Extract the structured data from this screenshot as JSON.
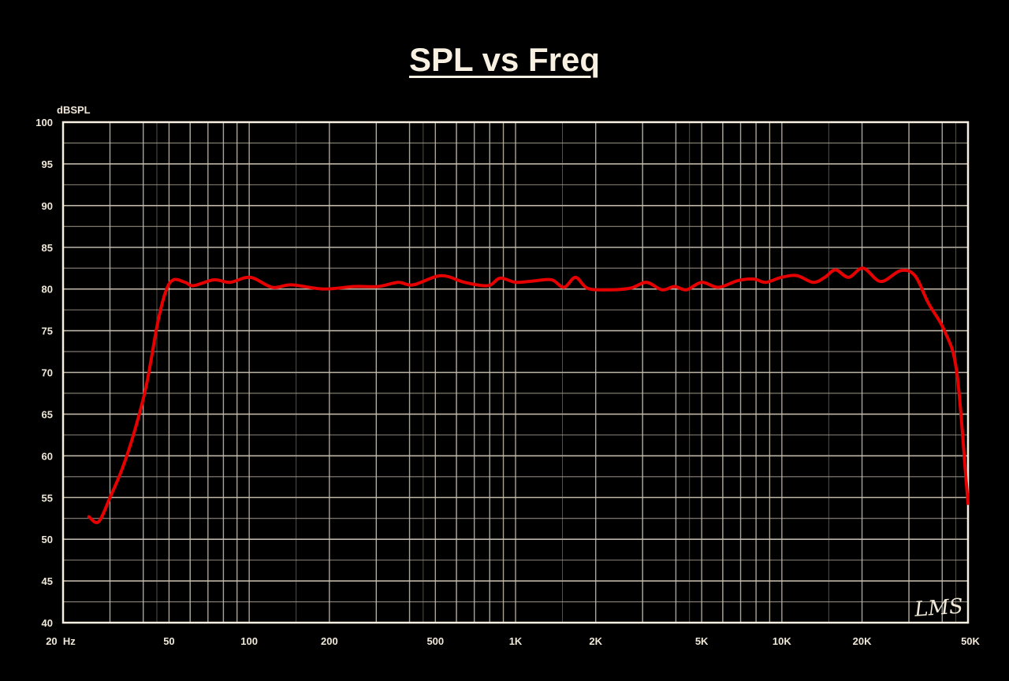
{
  "chart_data": {
    "type": "line",
    "title": "SPL vs Freq",
    "xlabel": "",
    "ylabel": "dBSPL",
    "xscale": "log",
    "xlim": [
      20,
      50000
    ],
    "ylim": [
      40,
      100
    ],
    "grid": true,
    "logo_text": "LMS",
    "x_ticks": [
      {
        "value": 20,
        "label": "20  Hz"
      },
      {
        "value": 50,
        "label": "50"
      },
      {
        "value": 100,
        "label": "100"
      },
      {
        "value": 200,
        "label": "200"
      },
      {
        "value": 500,
        "label": "500"
      },
      {
        "value": 1000,
        "label": "1K"
      },
      {
        "value": 2000,
        "label": "2K"
      },
      {
        "value": 5000,
        "label": "5K"
      },
      {
        "value": 10000,
        "label": "10K"
      },
      {
        "value": 20000,
        "label": "20K"
      },
      {
        "value": 50000,
        "label": "50K"
      }
    ],
    "y_ticks": [
      100,
      95,
      90,
      85,
      80,
      75,
      70,
      65,
      60,
      55,
      50,
      45,
      40
    ],
    "series": [
      {
        "name": "SPL",
        "color": "#e60000",
        "x": [
          25,
          27.2,
          30.1,
          33.3,
          36.9,
          41,
          45.3,
          48.6,
          51.9,
          57.5,
          61.8,
          73.7,
          84.7,
          101,
          122,
          144,
          190,
          248,
          305,
          362,
          413,
          524,
          644,
          788,
          876,
          1005,
          1195,
          1370,
          1520,
          1680,
          1860,
          2200,
          2700,
          3100,
          3550,
          3950,
          4380,
          5000,
          5770,
          6830,
          7840,
          8700,
          9970,
          11400,
          13100,
          14500,
          15900,
          17800,
          20200,
          23500,
          27900,
          31600,
          35500,
          40800,
          45300,
          49200,
          50000
        ],
        "y": [
          52.7,
          52.1,
          55.1,
          58.4,
          62.7,
          68.3,
          75.9,
          79.7,
          81.1,
          80.8,
          80.4,
          81.1,
          80.8,
          81.4,
          80.2,
          80.5,
          80.0,
          80.3,
          80.3,
          80.8,
          80.5,
          81.6,
          80.8,
          80.4,
          81.3,
          80.8,
          81.0,
          81.1,
          80.2,
          81.4,
          80.1,
          79.9,
          80.1,
          80.8,
          79.9,
          80.3,
          79.9,
          80.8,
          80.2,
          81.0,
          81.2,
          80.8,
          81.4,
          81.6,
          80.8,
          81.4,
          82.3,
          81.4,
          82.5,
          80.9,
          82.2,
          81.6,
          78.3,
          75.0,
          70.2,
          57.0,
          54.3
        ]
      }
    ]
  }
}
